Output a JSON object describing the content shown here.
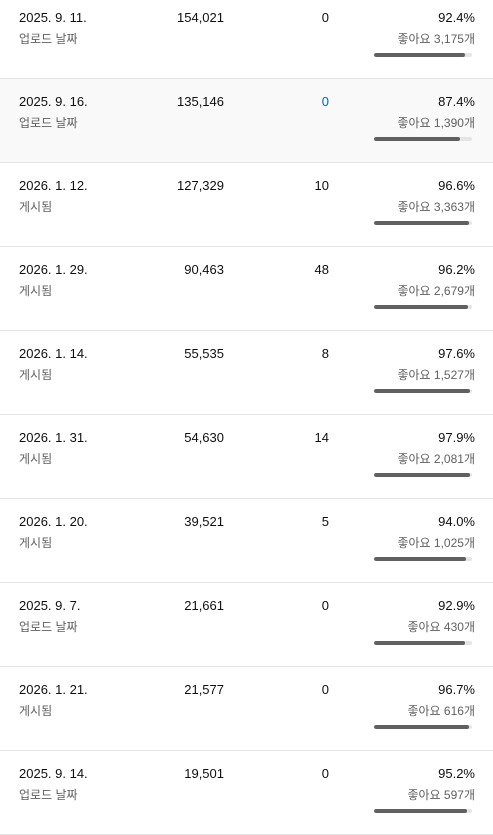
{
  "rows": [
    {
      "date": "2025. 9. 11.",
      "sub": "업로드 날짜",
      "views": "154,021",
      "comments": "0",
      "comments_link": false,
      "pct": "92.4%",
      "likes": "좋아요 3,175개",
      "ratio": 0.924,
      "hover": false
    },
    {
      "date": "2025. 9. 16.",
      "sub": "업로드 날짜",
      "views": "135,146",
      "comments": "0",
      "comments_link": true,
      "pct": "87.4%",
      "likes": "좋아요 1,390개",
      "ratio": 0.874,
      "hover": true
    },
    {
      "date": "2026. 1. 12.",
      "sub": "게시됨",
      "views": "127,329",
      "comments": "10",
      "comments_link": false,
      "pct": "96.6%",
      "likes": "좋아요 3,363개",
      "ratio": 0.966,
      "hover": false
    },
    {
      "date": "2026. 1. 29.",
      "sub": "게시됨",
      "views": "90,463",
      "comments": "48",
      "comments_link": false,
      "pct": "96.2%",
      "likes": "좋아요 2,679개",
      "ratio": 0.962,
      "hover": false
    },
    {
      "date": "2026. 1. 14.",
      "sub": "게시됨",
      "views": "55,535",
      "comments": "8",
      "comments_link": false,
      "pct": "97.6%",
      "likes": "좋아요 1,527개",
      "ratio": 0.976,
      "hover": false
    },
    {
      "date": "2026. 1. 31.",
      "sub": "게시됨",
      "views": "54,630",
      "comments": "14",
      "comments_link": false,
      "pct": "97.9%",
      "likes": "좋아요 2,081개",
      "ratio": 0.979,
      "hover": false
    },
    {
      "date": "2026. 1. 20.",
      "sub": "게시됨",
      "views": "39,521",
      "comments": "5",
      "comments_link": false,
      "pct": "94.0%",
      "likes": "좋아요 1,025개",
      "ratio": 0.94,
      "hover": false
    },
    {
      "date": "2025. 9. 7.",
      "sub": "업로드 날짜",
      "views": "21,661",
      "comments": "0",
      "comments_link": false,
      "pct": "92.9%",
      "likes": "좋아요 430개",
      "ratio": 0.929,
      "hover": false
    },
    {
      "date": "2026. 1. 21.",
      "sub": "게시됨",
      "views": "21,577",
      "comments": "0",
      "comments_link": false,
      "pct": "96.7%",
      "likes": "좋아요 616개",
      "ratio": 0.967,
      "hover": false
    },
    {
      "date": "2025. 9. 14.",
      "sub": "업로드 날짜",
      "views": "19,501",
      "comments": "0",
      "comments_link": false,
      "pct": "95.2%",
      "likes": "좋아요 597개",
      "ratio": 0.952,
      "hover": false
    }
  ]
}
